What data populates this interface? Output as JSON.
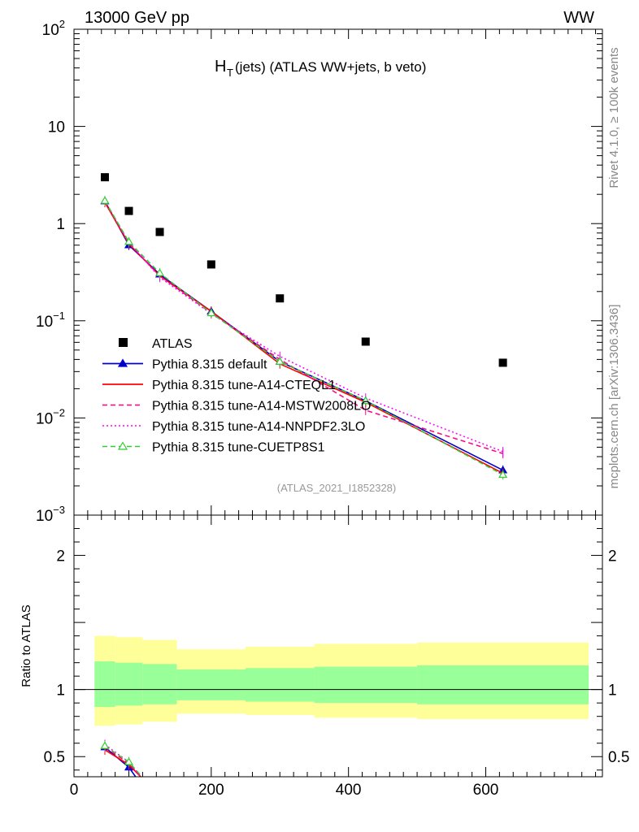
{
  "header": {
    "left": "13000 GeV pp",
    "right": "WW"
  },
  "side_labels": {
    "rivet": "Rivet 4.1.0, ≥ 100k events",
    "source": "mcplots.cern.ch [arXiv:1306.3436]"
  },
  "chart_data": {
    "type": "line",
    "title_main": "H",
    "title_sub": "T",
    "title_rest": " (jets) (ATLAS WW+jets, b veto)",
    "analysis_label": "(ATLAS_2021_I1852328)",
    "xlabel": "",
    "ylabel_ratio": "Ratio to ATLAS",
    "xlim": [
      0,
      770
    ],
    "ylim_main": [
      0.001,
      100
    ],
    "ylim_ratio": [
      0.35,
      2.3
    ],
    "x_ticks": [
      0,
      200,
      400,
      600
    ],
    "x_tick_labels": [
      "0",
      "200",
      "400",
      "600"
    ],
    "y_main_tick_labels": [
      {
        "value": 100,
        "base": "10",
        "exp": "2"
      },
      {
        "value": 10,
        "base": "10",
        "exp": ""
      },
      {
        "value": 1,
        "base": "1",
        "exp": ""
      },
      {
        "value": 0.1,
        "base": "10",
        "exp": "−1"
      },
      {
        "value": 0.01,
        "base": "10",
        "exp": "−2"
      },
      {
        "value": 0.001,
        "base": "10",
        "exp": "−3"
      }
    ],
    "y_ratio_ticks": [
      0.5,
      1,
      2
    ],
    "y_ratio_tick_labels": [
      "0.5",
      "1",
      "2"
    ],
    "bin_edges": [
      30,
      60,
      100,
      150,
      250,
      350,
      500,
      750
    ],
    "x": [
      45,
      80,
      125,
      200,
      300,
      425,
      625
    ],
    "data": {
      "name": "ATLAS",
      "values": [
        3.0,
        1.35,
        0.82,
        0.38,
        0.17,
        0.061,
        0.037
      ]
    },
    "bands": {
      "inner_lo": [
        0.87,
        0.88,
        0.89,
        0.92,
        0.91,
        0.9,
        0.89
      ],
      "inner_hi": [
        1.21,
        1.2,
        1.19,
        1.15,
        1.16,
        1.17,
        1.18
      ],
      "outer_lo": [
        0.73,
        0.74,
        0.76,
        0.82,
        0.81,
        0.79,
        0.78
      ],
      "outer_hi": [
        1.4,
        1.39,
        1.37,
        1.3,
        1.32,
        1.34,
        1.35
      ],
      "inner_color": "#99ff99",
      "outer_color": "#ffff99"
    },
    "series": [
      {
        "name": "Pythia 8.315 default",
        "color": "#0000cc",
        "style": "solid",
        "marker": "filled-triangle",
        "values": [
          1.7,
          0.6,
          0.3,
          0.125,
          0.038,
          0.015,
          0.0029
        ]
      },
      {
        "name": "Pythia 8.315 tune-A14-CTEQL1",
        "color": "#ff0000",
        "style": "solid",
        "marker": "none",
        "values": [
          1.65,
          0.62,
          0.29,
          0.125,
          0.036,
          0.0145,
          0.0027
        ]
      },
      {
        "name": "Pythia 8.315 tune-A14-MSTW2008LO",
        "color": "#ff0080",
        "style": "dashed",
        "marker": "none",
        "values": [
          1.7,
          0.63,
          0.29,
          0.12,
          0.04,
          0.012,
          0.0043
        ]
      },
      {
        "name": "Pythia 8.315 tune-A14-NNPDF2.3LO",
        "color": "#ff00ff",
        "style": "dotted",
        "marker": "none",
        "values": [
          1.72,
          0.64,
          0.28,
          0.118,
          0.043,
          0.016,
          0.0045
        ]
      },
      {
        "name": "Pythia 8.315 tune-CUETP8S1",
        "color": "#33cc33",
        "style": "dashed",
        "marker": "open-triangle",
        "values": [
          1.72,
          0.65,
          0.31,
          0.12,
          0.038,
          0.015,
          0.0026
        ]
      }
    ],
    "ratio_series": [
      {
        "name": "Pythia 8.315 default",
        "values": [
          0.57,
          0.42
        ]
      },
      {
        "name": "Pythia 8.315 tune-A14-CTEQL1",
        "values": [
          0.55,
          0.44
        ]
      },
      {
        "name": "Pythia 8.315 tune-A14-MSTW2008LO",
        "values": [
          0.57,
          0.45
        ]
      },
      {
        "name": "Pythia 8.315 tune-A14-NNPDF2.3LO",
        "values": [
          0.59,
          0.46
        ]
      },
      {
        "name": "Pythia 8.315 tune-CUETP8S1",
        "values": [
          0.58,
          0.46
        ]
      }
    ]
  }
}
